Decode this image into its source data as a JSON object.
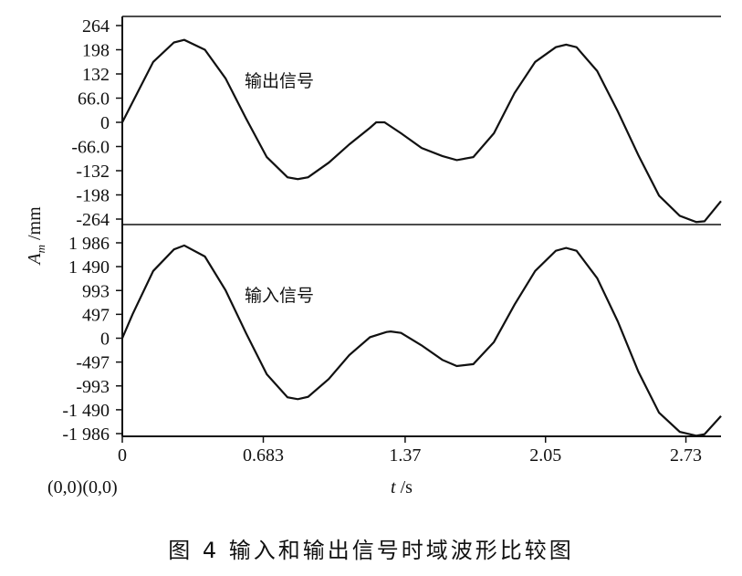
{
  "figure": {
    "caption": "图 4   输入和输出信号时域波形比较图",
    "ylabel": "A_m /mm",
    "xlabel": "t /s",
    "origin_note": "(0,0)(0,0)"
  },
  "chart_data": [
    {
      "type": "line",
      "label": "输出信号",
      "ylim": [
        -264,
        264
      ],
      "yticks": [
        264,
        198,
        132,
        66.0,
        0,
        -66.0,
        -132,
        -198,
        -264
      ],
      "ytick_labels": [
        "264",
        "198",
        "132",
        "66.0",
        "0",
        "-66.0",
        "-132",
        "-198",
        "-264"
      ],
      "xlim": [
        0,
        2.9
      ],
      "series": [
        {
          "x": [
            0,
            0.05,
            0.15,
            0.25,
            0.3,
            0.4,
            0.5,
            0.6,
            0.7,
            0.8,
            0.85,
            0.9,
            1.0,
            1.1,
            1.2,
            1.23,
            1.27,
            1.35,
            1.45,
            1.55,
            1.62,
            1.7,
            1.8,
            1.9,
            2.0,
            2.1,
            2.15,
            2.2,
            2.3,
            2.4,
            2.5,
            2.6,
            2.7,
            2.78,
            2.82,
            2.9
          ],
          "y": [
            0,
            55,
            165,
            218,
            225,
            198,
            120,
            10,
            -95,
            -150,
            -155,
            -150,
            -110,
            -60,
            -15,
            0,
            0,
            -30,
            -70,
            -92,
            -103,
            -95,
            -30,
            80,
            165,
            205,
            212,
            205,
            140,
            30,
            -90,
            -200,
            -255,
            -272,
            -270,
            -215
          ]
        }
      ]
    },
    {
      "type": "line",
      "label": "输入信号",
      "ylim": [
        -1986,
        1986
      ],
      "yticks": [
        1986,
        1490,
        993,
        497,
        0,
        -497,
        -993,
        -1490,
        -1986
      ],
      "ytick_labels": [
        "1 986",
        "1 490",
        "993",
        "497",
        "0",
        "-497",
        "-993",
        "-1 490",
        "-1 986"
      ],
      "xlim": [
        0,
        2.9
      ],
      "xticks": [
        0,
        0.683,
        1.37,
        2.05,
        2.73
      ],
      "xtick_labels": [
        "0",
        "0.683",
        "1.37",
        "2.05",
        "2.73"
      ],
      "series": [
        {
          "x": [
            0,
            0.05,
            0.15,
            0.25,
            0.3,
            0.4,
            0.5,
            0.6,
            0.7,
            0.8,
            0.85,
            0.9,
            1.0,
            1.1,
            1.2,
            1.28,
            1.3,
            1.35,
            1.45,
            1.55,
            1.62,
            1.7,
            1.8,
            1.9,
            2.0,
            2.1,
            2.15,
            2.2,
            2.3,
            2.4,
            2.5,
            2.6,
            2.7,
            2.78,
            2.82,
            2.9
          ],
          "y": [
            0,
            500,
            1400,
            1850,
            1930,
            1700,
            1000,
            100,
            -750,
            -1230,
            -1270,
            -1220,
            -850,
            -350,
            20,
            130,
            140,
            110,
            -150,
            -450,
            -580,
            -540,
            -80,
            700,
            1400,
            1820,
            1880,
            1820,
            1250,
            350,
            -700,
            -1550,
            -1950,
            -2030,
            -2000,
            -1620
          ]
        }
      ]
    }
  ]
}
